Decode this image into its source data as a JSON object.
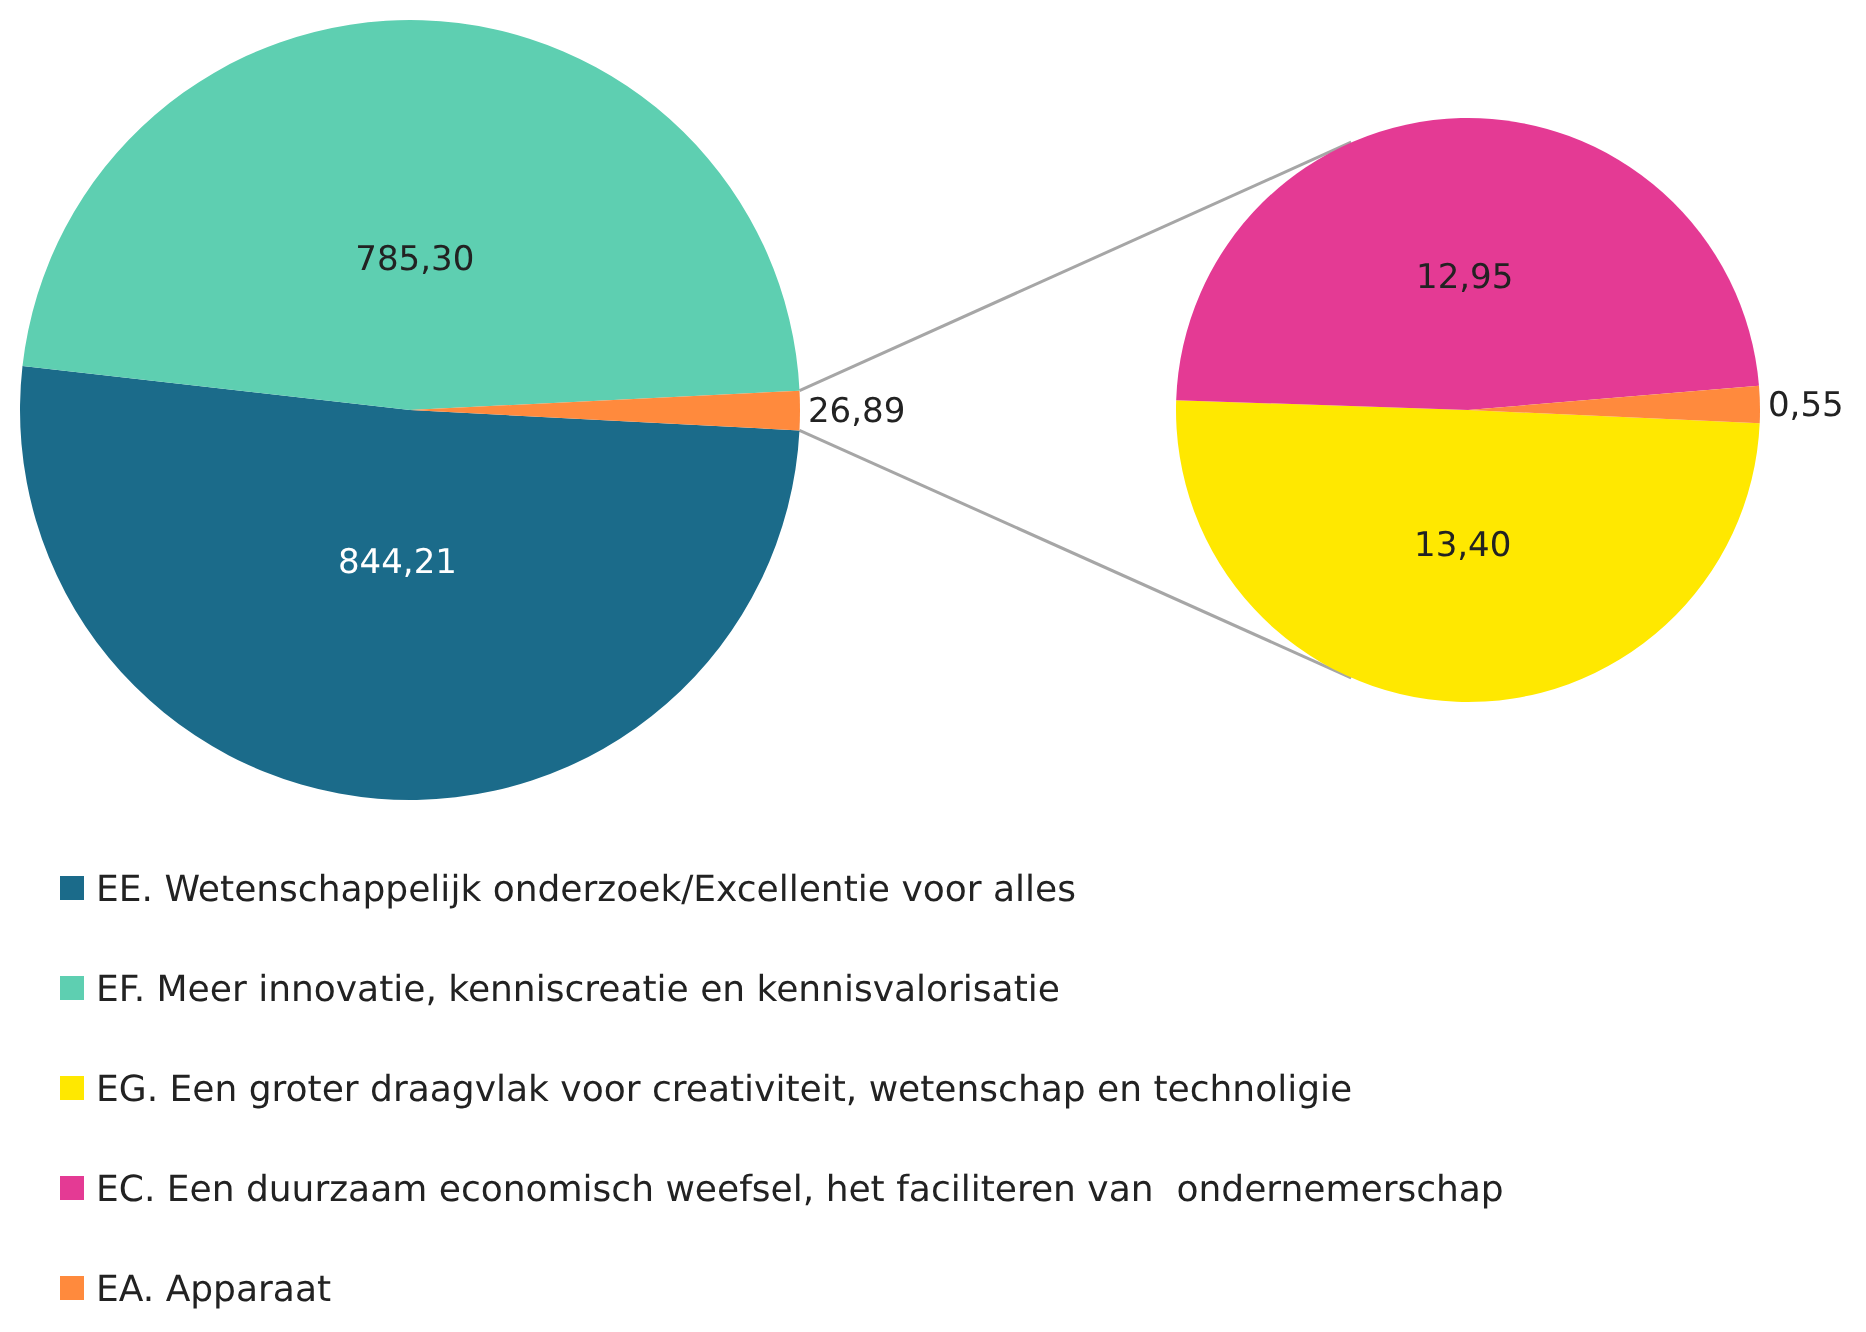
{
  "chart_data": [
    {
      "type": "pie",
      "categories": [
        "EE. Wetenschappelijk onderzoek/Excellentie voor alles",
        "EF. Meer innovatie, kenniscreatie en kennisvalorisatie",
        null
      ],
      "values": [
        844.21,
        785.3,
        26.89
      ],
      "value_labels": [
        "844,21",
        "785,30",
        "26,89"
      ],
      "colors": [
        "#1b6b8a",
        "#5ecfb1",
        "#ff8a3d"
      ],
      "legend": "bottom"
    },
    {
      "type": "pie",
      "categories": [
        "EG. Een groter draagvlak voor creativiteit, wetenschap en technoligie",
        "EC. Een duurzaam economisch weefsel, het faciliteren van  ondernemerschap",
        "EA. Apparaat"
      ],
      "values": [
        13.4,
        12.95,
        0.55
      ],
      "value_labels": [
        "13,40",
        "12,95",
        "0,55"
      ],
      "colors": [
        "#ffe800",
        "#e43a94",
        "#ff8a3d"
      ],
      "legend": "bottom"
    }
  ]
}
